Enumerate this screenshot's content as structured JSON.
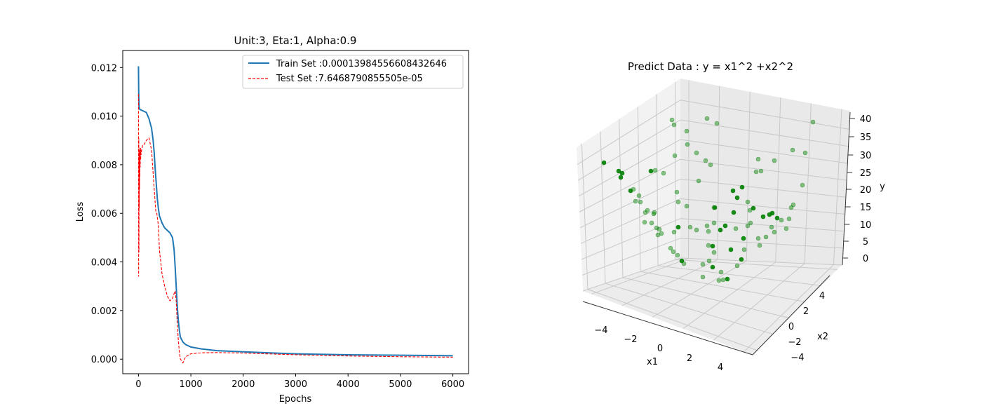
{
  "chart_data": [
    {
      "type": "line",
      "title": "Unit:3, Eta:1, Alpha:0.9",
      "xlabel": "Epochs",
      "ylabel": "Loss",
      "xlim": [
        -300,
        6300
      ],
      "ylim": [
        -0.0006,
        0.0127
      ],
      "xticks": [
        0,
        1000,
        2000,
        3000,
        4000,
        5000,
        6000
      ],
      "xtick_labels": [
        "0",
        "1000",
        "2000",
        "3000",
        "4000",
        "5000",
        "6000"
      ],
      "yticks": [
        0.0,
        0.002,
        0.004,
        0.006,
        0.008,
        0.01,
        0.012
      ],
      "ytick_labels": [
        "0.000",
        "0.002",
        "0.004",
        "0.006",
        "0.008",
        "0.010",
        "0.012"
      ],
      "legend_position": "upper right",
      "series": [
        {
          "name": "Train Set :0.00013984556608432646",
          "color": "#1f77b4",
          "style": "solid",
          "x": [
            0,
            5,
            12,
            25,
            50,
            100,
            150,
            200,
            250,
            280,
            300,
            320,
            340,
            360,
            380,
            400,
            450,
            500,
            550,
            600,
            650,
            680,
            700,
            720,
            740,
            760,
            780,
            800,
            850,
            900,
            1000,
            1200,
            1500,
            2000,
            3000,
            4000,
            5000,
            6000
          ],
          "y": [
            0.01205,
            0.0109,
            0.01035,
            0.01028,
            0.01025,
            0.0102,
            0.01015,
            0.0099,
            0.0095,
            0.009,
            0.0085,
            0.0078,
            0.0072,
            0.0066,
            0.0062,
            0.0059,
            0.0056,
            0.0054,
            0.0053,
            0.0052,
            0.005,
            0.0045,
            0.0038,
            0.003,
            0.0022,
            0.0016,
            0.0012,
            0.0009,
            0.0007,
            0.0006,
            0.0005,
            0.00042,
            0.00035,
            0.0003,
            0.00022,
            0.00018,
            0.00016,
            0.00014
          ]
        },
        {
          "name": "Test Set :7.6468790855505e-05",
          "color": "#ff0000",
          "style": "dashed",
          "x": [
            0,
            3,
            6,
            9,
            12,
            15,
            18,
            21,
            24,
            27,
            30,
            34,
            38,
            42,
            46,
            50,
            60,
            80,
            100,
            150,
            200,
            250,
            300,
            330,
            350,
            380,
            400,
            450,
            500,
            550,
            600,
            650,
            680,
            700,
            720,
            740,
            760,
            780,
            800,
            850,
            900,
            1000,
            1200,
            1500,
            2000,
            3000,
            4000,
            5000,
            6000
          ],
          "y": [
            0.0109,
            0.0034,
            0.0091,
            0.0044,
            0.0086,
            0.0062,
            0.0083,
            0.007,
            0.0086,
            0.0075,
            0.0087,
            0.0079,
            0.0087,
            0.0082,
            0.0086,
            0.0084,
            0.0086,
            0.0088,
            0.0088,
            0.009,
            0.0091,
            0.0086,
            0.007,
            0.0061,
            0.006,
            0.0055,
            0.0045,
            0.0035,
            0.003,
            0.0026,
            0.0024,
            0.0025,
            0.0027,
            0.0028,
            0.0024,
            0.0015,
            0.0008,
            0.0003,
            0.0,
            -0.00015,
            0.0001,
            0.00022,
            0.00026,
            0.00027,
            0.00025,
            0.00018,
            0.00013,
            0.0001,
            8e-05
          ]
        }
      ]
    },
    {
      "type": "scatter",
      "title": "Predict Data : y = x1^2 +x2^2",
      "xlabel": "x1",
      "ylabel": "x2",
      "zlabel": "y",
      "xticks": [
        "−4",
        "−2",
        "0",
        "2",
        "4"
      ],
      "yticks": [
        "−4",
        "−2",
        "0",
        "2",
        "4"
      ],
      "zticks": [
        "0",
        "5",
        "10",
        "15",
        "20",
        "25",
        "30",
        "35",
        "40"
      ],
      "color": "#008000",
      "point_count": 100
    }
  ]
}
